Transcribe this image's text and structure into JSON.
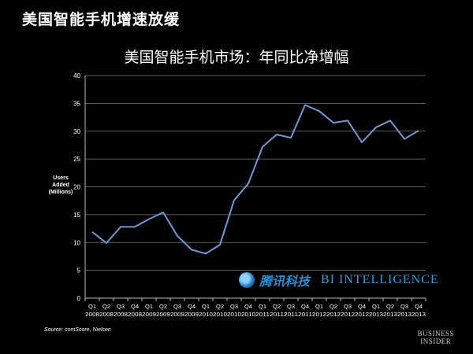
{
  "slide": {
    "title": "美国智能手机增速放缓",
    "source": "Source: comScore, Nielsen",
    "logo_line1": "BUSINESS",
    "logo_line2": "INSIDER"
  },
  "watermark": {
    "tencent": "腾讯科技",
    "bi": "BI INTELLIGENCE"
  },
  "chart_data": {
    "type": "line",
    "title": "美国智能手机市场：年同比净增幅",
    "ylabel_lines": [
      "Users",
      "Added",
      "(Millions)"
    ],
    "xlabel": "",
    "ylim": [
      0,
      40
    ],
    "yticks": [
      0,
      5,
      10,
      15,
      20,
      25,
      30,
      35,
      40
    ],
    "grid": true,
    "line_color": "#6f9ad6",
    "categories": [
      {
        "q": "Q1",
        "y": "2008"
      },
      {
        "q": "Q2",
        "y": "2008"
      },
      {
        "q": "Q3",
        "y": "2008"
      },
      {
        "q": "Q4",
        "y": "2008"
      },
      {
        "q": "Q1",
        "y": "2009"
      },
      {
        "q": "Q2",
        "y": "2009"
      },
      {
        "q": "Q3",
        "y": "2009"
      },
      {
        "q": "Q4",
        "y": "2009"
      },
      {
        "q": "Q1",
        "y": "2010"
      },
      {
        "q": "Q2",
        "y": "2010"
      },
      {
        "q": "Q3",
        "y": "2010"
      },
      {
        "q": "Q4",
        "y": "2010"
      },
      {
        "q": "Q1",
        "y": "2011"
      },
      {
        "q": "Q2",
        "y": "2011"
      },
      {
        "q": "Q3",
        "y": "2011"
      },
      {
        "q": "Q4",
        "y": "2011"
      },
      {
        "q": "Q1",
        "y": "2012"
      },
      {
        "q": "Q2",
        "y": "2012"
      },
      {
        "q": "Q3",
        "y": "2012"
      },
      {
        "q": "Q4",
        "y": "2012"
      },
      {
        "q": "Q1",
        "y": "2013"
      },
      {
        "q": "Q2",
        "y": "2013"
      },
      {
        "q": "Q3",
        "y": "2013"
      },
      {
        "q": "Q4",
        "y": "2013"
      }
    ],
    "values": [
      11.9,
      9.9,
      12.8,
      12.8,
      14.2,
      15.4,
      11.2,
      8.7,
      8.0,
      9.6,
      17.6,
      20.6,
      27.2,
      29.4,
      28.8,
      34.7,
      33.6,
      31.5,
      31.9,
      28.0,
      30.7,
      31.9,
      28.6,
      30.1
    ]
  }
}
